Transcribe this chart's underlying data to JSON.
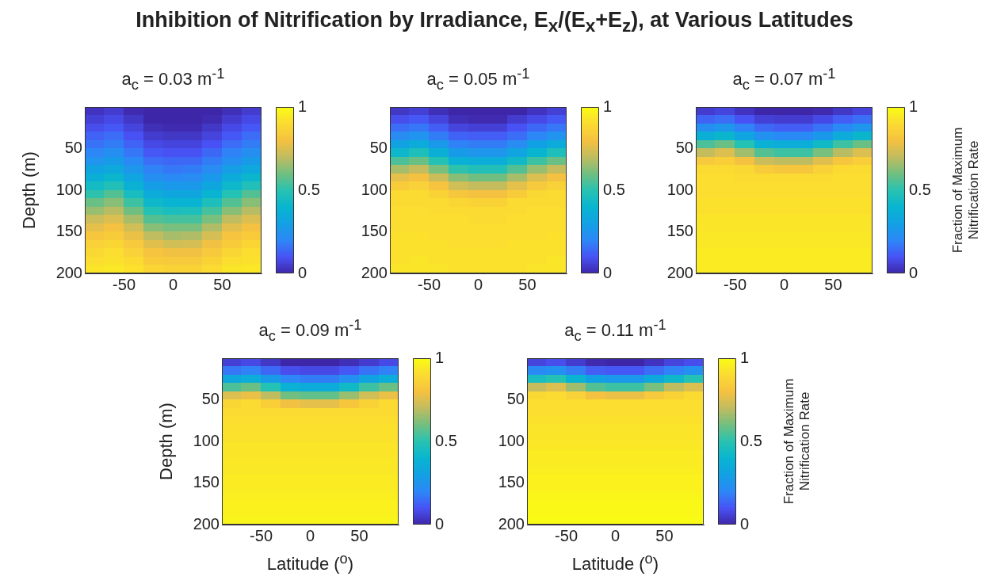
{
  "chart_data": [
    {
      "type": "other",
      "title": "Inhibition of Nitrification by Irradiance, E$_{x}$/(E$_{x}$+E$_{z}$), at Various Latitudes"
    },
    {
      "type": "heatmap",
      "title": "a$_{c}$ = 0.03 m$^{-1}$",
      "ylabel": "Depth (m)",
      "x": [
        -80,
        -60,
        -40,
        -20,
        0,
        20,
        40,
        60,
        80
      ],
      "y": [
        5,
        15,
        25,
        35,
        45,
        55,
        65,
        75,
        85,
        95,
        105,
        115,
        125,
        135,
        145,
        155,
        165,
        175,
        185,
        195
      ],
      "xlim": [
        -90,
        90
      ],
      "xticks": [
        -50,
        0,
        50
      ],
      "ylim": [
        200,
        0
      ],
      "yticks": [
        50,
        100,
        150,
        200
      ],
      "clim": [
        0,
        1
      ],
      "cticks": [
        0,
        0.5,
        1
      ],
      "cells": [
        [
          0.03,
          0.05,
          0.01,
          0,
          0,
          0,
          0,
          0.02,
          0.05
        ],
        [
          0.06,
          0.08,
          0.04,
          0,
          0,
          0,
          0.01,
          0.05,
          0.08
        ],
        [
          0.09,
          0.11,
          0.07,
          0.02,
          0.01,
          0.01,
          0.04,
          0.08,
          0.11
        ],
        [
          0.13,
          0.15,
          0.1,
          0.05,
          0.04,
          0.04,
          0.07,
          0.11,
          0.15
        ],
        [
          0.16,
          0.18,
          0.13,
          0.08,
          0.07,
          0.07,
          0.1,
          0.15,
          0.18
        ],
        [
          0.2,
          0.23,
          0.17,
          0.11,
          0.1,
          0.1,
          0.14,
          0.19,
          0.23
        ],
        [
          0.25,
          0.28,
          0.21,
          0.15,
          0.14,
          0.14,
          0.18,
          0.23,
          0.28
        ],
        [
          0.31,
          0.34,
          0.26,
          0.19,
          0.17,
          0.18,
          0.22,
          0.29,
          0.34
        ],
        [
          0.37,
          0.41,
          0.32,
          0.23,
          0.21,
          0.22,
          0.27,
          0.35,
          0.41
        ],
        [
          0.44,
          0.48,
          0.38,
          0.29,
          0.27,
          0.27,
          0.33,
          0.42,
          0.48
        ],
        [
          0.51,
          0.56,
          0.45,
          0.35,
          0.33,
          0.33,
          0.39,
          0.49,
          0.56
        ],
        [
          0.59,
          0.63,
          0.53,
          0.42,
          0.39,
          0.39,
          0.47,
          0.56,
          0.63
        ],
        [
          0.65,
          0.69,
          0.6,
          0.49,
          0.46,
          0.47,
          0.54,
          0.63,
          0.69
        ],
        [
          0.72,
          0.75,
          0.67,
          0.56,
          0.54,
          0.54,
          0.61,
          0.7,
          0.75
        ],
        [
          0.77,
          0.8,
          0.73,
          0.63,
          0.61,
          0.61,
          0.68,
          0.76,
          0.8
        ],
        [
          0.82,
          0.84,
          0.78,
          0.7,
          0.67,
          0.68,
          0.74,
          0.81,
          0.84
        ],
        [
          0.86,
          0.88,
          0.83,
          0.76,
          0.73,
          0.74,
          0.79,
          0.84,
          0.88
        ],
        [
          0.89,
          0.91,
          0.86,
          0.81,
          0.79,
          0.79,
          0.83,
          0.88,
          0.91
        ],
        [
          0.91,
          0.92,
          0.9,
          0.84,
          0.83,
          0.83,
          0.87,
          0.91,
          0.92
        ],
        [
          0.93,
          0.94,
          0.92,
          0.88,
          0.87,
          0.87,
          0.9,
          0.93,
          0.94
        ]
      ]
    },
    {
      "type": "heatmap",
      "title": "a$_{c}$ = 0.05 m$^{-1}$",
      "x": [
        -80,
        -60,
        -40,
        -20,
        0,
        20,
        40,
        60,
        80
      ],
      "y": [
        5,
        15,
        25,
        35,
        45,
        55,
        65,
        75,
        85,
        95,
        105,
        115,
        125,
        135,
        145,
        155,
        165,
        175,
        185,
        195
      ],
      "xlim": [
        -90,
        90
      ],
      "xticks": [
        -50,
        0,
        50
      ],
      "ylim": [
        200,
        0
      ],
      "yticks": [
        50,
        100,
        150,
        200
      ],
      "clim": [
        0,
        1
      ],
      "cticks": [
        0,
        0.5,
        1
      ],
      "cells": [
        [
          0.04,
          0.06,
          0.02,
          0,
          0,
          0,
          0,
          0.03,
          0.06
        ],
        [
          0.09,
          0.11,
          0.07,
          0.02,
          0.01,
          0.01,
          0.05,
          0.08,
          0.11
        ],
        [
          0.15,
          0.17,
          0.12,
          0.07,
          0.06,
          0.06,
          0.1,
          0.14,
          0.17
        ],
        [
          0.22,
          0.25,
          0.18,
          0.13,
          0.12,
          0.12,
          0.15,
          0.2,
          0.25
        ],
        [
          0.31,
          0.35,
          0.27,
          0.19,
          0.18,
          0.18,
          0.22,
          0.3,
          0.35
        ],
        [
          0.42,
          0.47,
          0.37,
          0.28,
          0.26,
          0.26,
          0.32,
          0.4,
          0.47
        ],
        [
          0.55,
          0.59,
          0.49,
          0.38,
          0.36,
          0.36,
          0.43,
          0.53,
          0.59
        ],
        [
          0.67,
          0.71,
          0.61,
          0.51,
          0.48,
          0.48,
          0.56,
          0.65,
          0.71
        ],
        [
          0.77,
          0.8,
          0.72,
          0.63,
          0.6,
          0.6,
          0.67,
          0.75,
          0.8
        ],
        [
          0.84,
          0.86,
          0.81,
          0.73,
          0.71,
          0.71,
          0.77,
          0.83,
          0.86
        ],
        [
          0.9,
          0.9,
          0.87,
          0.82,
          0.8,
          0.8,
          0.84,
          0.89,
          0.9
        ],
        [
          0.9,
          0.9,
          0.9,
          0.88,
          0.87,
          0.87,
          0.9,
          0.9,
          0.9
        ],
        [
          0.91,
          0.91,
          0.9,
          0.9,
          0.9,
          0.9,
          0.9,
          0.91,
          0.91
        ],
        [
          0.91,
          0.91,
          0.91,
          0.91,
          0.9,
          0.9,
          0.91,
          0.91,
          0.91
        ],
        [
          0.91,
          0.91,
          0.91,
          0.91,
          0.91,
          0.91,
          0.91,
          0.91,
          0.91
        ],
        [
          0.92,
          0.92,
          0.91,
          0.91,
          0.91,
          0.91,
          0.91,
          0.91,
          0.92
        ],
        [
          0.92,
          0.92,
          0.92,
          0.91,
          0.91,
          0.91,
          0.92,
          0.92,
          0.92
        ],
        [
          0.92,
          0.92,
          0.92,
          0.92,
          0.92,
          0.92,
          0.92,
          0.92,
          0.92
        ],
        [
          0.92,
          0.93,
          0.92,
          0.92,
          0.92,
          0.92,
          0.92,
          0.92,
          0.93
        ],
        [
          0.93,
          0.93,
          0.93,
          0.92,
          0.92,
          0.92,
          0.92,
          0.93,
          0.93
        ]
      ]
    },
    {
      "type": "heatmap",
      "title": "a$_{c}$ = 0.07 m$^{-1}$",
      "clabel": "Fraction of Maximum Nitrification Rate",
      "x": [
        -80,
        -60,
        -40,
        -20,
        0,
        20,
        40,
        60,
        80
      ],
      "y": [
        5,
        15,
        25,
        35,
        45,
        55,
        65,
        75,
        85,
        95,
        105,
        115,
        125,
        135,
        145,
        155,
        165,
        175,
        185,
        195
      ],
      "xlim": [
        -90,
        90
      ],
      "xticks": [
        -50,
        0,
        50
      ],
      "ylim": [
        200,
        0
      ],
      "yticks": [
        50,
        100,
        150,
        200
      ],
      "clim": [
        0,
        1
      ],
      "cticks": [
        0,
        0.5,
        1
      ],
      "cells": [
        [
          0.05,
          0.07,
          0.03,
          0,
          0,
          0,
          0.01,
          0.04,
          0.07
        ],
        [
          0.13,
          0.15,
          0.1,
          0.06,
          0.05,
          0.05,
          0.08,
          0.12,
          0.15
        ],
        [
          0.23,
          0.26,
          0.19,
          0.14,
          0.12,
          0.12,
          0.16,
          0.21,
          0.26
        ],
        [
          0.37,
          0.41,
          0.32,
          0.24,
          0.21,
          0.21,
          0.27,
          0.35,
          0.41
        ],
        [
          0.55,
          0.59,
          0.49,
          0.38,
          0.36,
          0.36,
          0.43,
          0.53,
          0.59
        ],
        [
          0.71,
          0.75,
          0.66,
          0.56,
          0.53,
          0.53,
          0.61,
          0.69,
          0.75
        ],
        [
          0.83,
          0.85,
          0.8,
          0.72,
          0.7,
          0.7,
          0.76,
          0.82,
          0.85
        ],
        [
          0.9,
          0.9,
          0.89,
          0.84,
          0.82,
          0.82,
          0.86,
          0.9,
          0.9
        ],
        [
          0.91,
          0.91,
          0.9,
          0.9,
          0.9,
          0.9,
          0.9,
          0.91,
          0.91
        ],
        [
          0.91,
          0.91,
          0.91,
          0.91,
          0.91,
          0.91,
          0.91,
          0.91,
          0.91
        ],
        [
          0.91,
          0.91,
          0.91,
          0.91,
          0.91,
          0.91,
          0.91,
          0.91,
          0.91
        ],
        [
          0.92,
          0.92,
          0.92,
          0.92,
          0.92,
          0.92,
          0.92,
          0.92,
          0.92
        ],
        [
          0.92,
          0.92,
          0.92,
          0.92,
          0.92,
          0.92,
          0.92,
          0.92,
          0.92
        ],
        [
          0.93,
          0.93,
          0.93,
          0.93,
          0.93,
          0.93,
          0.93,
          0.93,
          0.93
        ],
        [
          0.93,
          0.93,
          0.93,
          0.93,
          0.93,
          0.93,
          0.93,
          0.93,
          0.93
        ],
        [
          0.94,
          0.94,
          0.94,
          0.94,
          0.94,
          0.94,
          0.94,
          0.94,
          0.94
        ],
        [
          0.94,
          0.94,
          0.94,
          0.94,
          0.94,
          0.94,
          0.94,
          0.94,
          0.94
        ],
        [
          0.95,
          0.95,
          0.95,
          0.95,
          0.95,
          0.95,
          0.95,
          0.95,
          0.95
        ],
        [
          0.95,
          0.95,
          0.95,
          0.95,
          0.95,
          0.95,
          0.95,
          0.95,
          0.95
        ],
        [
          0.95,
          0.95,
          0.95,
          0.95,
          0.95,
          0.95,
          0.95,
          0.95,
          0.95
        ]
      ]
    },
    {
      "type": "heatmap",
      "title": "a$_{c}$ = 0.09 m$^{-1}$",
      "xlabel": "Latitude ($^{o}$)",
      "ylabel": "Depth (m)",
      "x": [
        -80,
        -60,
        -40,
        -20,
        0,
        20,
        40,
        60,
        80
      ],
      "y": [
        5,
        15,
        25,
        35,
        45,
        55,
        65,
        75,
        85,
        95,
        105,
        115,
        125,
        135,
        145,
        155,
        165,
        175,
        185,
        195
      ],
      "xlim": [
        -90,
        90
      ],
      "xticks": [
        -50,
        0,
        50
      ],
      "ylim": [
        200,
        0
      ],
      "yticks": [
        50,
        100,
        150,
        200
      ],
      "clim": [
        0,
        1
      ],
      "cticks": [
        0,
        0.5,
        1
      ],
      "cells": [
        [
          0.06,
          0.08,
          0.04,
          0,
          0,
          0,
          0.02,
          0.05,
          0.08
        ],
        [
          0.17,
          0.19,
          0.14,
          0.09,
          0.08,
          0.08,
          0.11,
          0.16,
          0.19
        ],
        [
          0.33,
          0.36,
          0.28,
          0.2,
          0.18,
          0.18,
          0.23,
          0.31,
          0.36
        ],
        [
          0.55,
          0.59,
          0.49,
          0.38,
          0.35,
          0.35,
          0.43,
          0.53,
          0.59
        ],
        [
          0.75,
          0.78,
          0.7,
          0.6,
          0.58,
          0.58,
          0.65,
          0.73,
          0.78
        ],
        [
          0.88,
          0.9,
          0.85,
          0.79,
          0.77,
          0.77,
          0.82,
          0.87,
          0.9
        ],
        [
          0.9,
          0.9,
          0.9,
          0.9,
          0.9,
          0.9,
          0.9,
          0.9,
          0.9
        ],
        [
          0.91,
          0.91,
          0.91,
          0.91,
          0.91,
          0.91,
          0.91,
          0.91,
          0.91
        ],
        [
          0.92,
          0.92,
          0.92,
          0.92,
          0.92,
          0.92,
          0.92,
          0.92,
          0.92
        ],
        [
          0.92,
          0.92,
          0.92,
          0.92,
          0.92,
          0.92,
          0.92,
          0.92,
          0.92
        ],
        [
          0.93,
          0.93,
          0.93,
          0.93,
          0.93,
          0.93,
          0.93,
          0.93,
          0.93
        ],
        [
          0.93,
          0.93,
          0.93,
          0.93,
          0.93,
          0.93,
          0.93,
          0.93,
          0.93
        ],
        [
          0.94,
          0.94,
          0.94,
          0.94,
          0.94,
          0.94,
          0.94,
          0.94,
          0.94
        ],
        [
          0.94,
          0.94,
          0.94,
          0.94,
          0.94,
          0.94,
          0.94,
          0.94,
          0.94
        ],
        [
          0.95,
          0.95,
          0.95,
          0.95,
          0.95,
          0.95,
          0.95,
          0.95,
          0.95
        ],
        [
          0.95,
          0.95,
          0.95,
          0.95,
          0.95,
          0.95,
          0.95,
          0.95,
          0.95
        ],
        [
          0.96,
          0.96,
          0.96,
          0.96,
          0.96,
          0.96,
          0.96,
          0.96,
          0.96
        ],
        [
          0.97,
          0.97,
          0.97,
          0.97,
          0.97,
          0.97,
          0.97,
          0.97,
          0.97
        ],
        [
          0.97,
          0.97,
          0.97,
          0.97,
          0.97,
          0.97,
          0.97,
          0.97,
          0.97
        ],
        [
          0.98,
          0.98,
          0.98,
          0.98,
          0.98,
          0.98,
          0.98,
          0.98,
          0.98
        ]
      ]
    },
    {
      "type": "heatmap",
      "title": "a$_{c}$ = 0.11 m$^{-1}$",
      "xlabel": "Latitude ($^{o}$)",
      "clabel": "Fraction of Maximum Nitrification Rate",
      "x": [
        -80,
        -60,
        -40,
        -20,
        0,
        20,
        40,
        60,
        80
      ],
      "y": [
        5,
        15,
        25,
        35,
        45,
        55,
        65,
        75,
        85,
        95,
        105,
        115,
        125,
        135,
        145,
        155,
        165,
        175,
        185,
        195
      ],
      "xlim": [
        -90,
        90
      ],
      "xticks": [
        -50,
        0,
        50
      ],
      "ylim": [
        200,
        0
      ],
      "yticks": [
        50,
        100,
        150,
        200
      ],
      "clim": [
        0,
        1
      ],
      "cticks": [
        0,
        0.5,
        1
      ],
      "cells": [
        [
          0.07,
          0.09,
          0.05,
          0.01,
          0,
          0,
          0.03,
          0.07,
          0.09
        ],
        [
          0.21,
          0.24,
          0.18,
          0.12,
          0.11,
          0.11,
          0.15,
          0.19,
          0.24
        ],
        [
          0.45,
          0.49,
          0.39,
          0.3,
          0.27,
          0.27,
          0.34,
          0.42,
          0.49
        ],
        [
          0.71,
          0.75,
          0.66,
          0.56,
          0.53,
          0.53,
          0.61,
          0.7,
          0.75
        ],
        [
          0.89,
          0.9,
          0.86,
          0.8,
          0.78,
          0.78,
          0.83,
          0.87,
          0.9
        ],
        [
          0.91,
          0.91,
          0.91,
          0.91,
          0.91,
          0.91,
          0.91,
          0.91,
          0.91
        ],
        [
          0.91,
          0.91,
          0.91,
          0.91,
          0.91,
          0.91,
          0.91,
          0.91,
          0.91
        ],
        [
          0.92,
          0.92,
          0.92,
          0.92,
          0.92,
          0.92,
          0.92,
          0.92,
          0.92
        ],
        [
          0.93,
          0.93,
          0.93,
          0.93,
          0.93,
          0.93,
          0.93,
          0.93,
          0.93
        ],
        [
          0.93,
          0.93,
          0.93,
          0.93,
          0.93,
          0.93,
          0.93,
          0.93,
          0.93
        ],
        [
          0.94,
          0.94,
          0.94,
          0.94,
          0.94,
          0.94,
          0.94,
          0.94,
          0.94
        ],
        [
          0.95,
          0.95,
          0.95,
          0.95,
          0.95,
          0.95,
          0.95,
          0.95,
          0.95
        ],
        [
          0.95,
          0.95,
          0.95,
          0.95,
          0.95,
          0.95,
          0.95,
          0.95,
          0.95
        ],
        [
          0.96,
          0.96,
          0.96,
          0.96,
          0.96,
          0.96,
          0.96,
          0.96,
          0.96
        ],
        [
          0.97,
          0.97,
          0.97,
          0.97,
          0.97,
          0.97,
          0.97,
          0.97,
          0.97
        ],
        [
          0.97,
          0.97,
          0.97,
          0.97,
          0.97,
          0.97,
          0.97,
          0.97,
          0.97
        ],
        [
          0.98,
          0.98,
          0.98,
          0.98,
          0.98,
          0.98,
          0.98,
          0.98,
          0.98
        ],
        [
          0.99,
          0.99,
          0.99,
          0.99,
          0.99,
          0.99,
          0.99,
          0.99,
          0.99
        ],
        [
          0.99,
          0.99,
          0.99,
          0.99,
          0.99,
          0.99,
          0.99,
          0.99,
          0.99
        ],
        [
          1,
          1,
          1,
          1,
          1,
          1,
          1,
          1,
          1
        ]
      ]
    }
  ]
}
